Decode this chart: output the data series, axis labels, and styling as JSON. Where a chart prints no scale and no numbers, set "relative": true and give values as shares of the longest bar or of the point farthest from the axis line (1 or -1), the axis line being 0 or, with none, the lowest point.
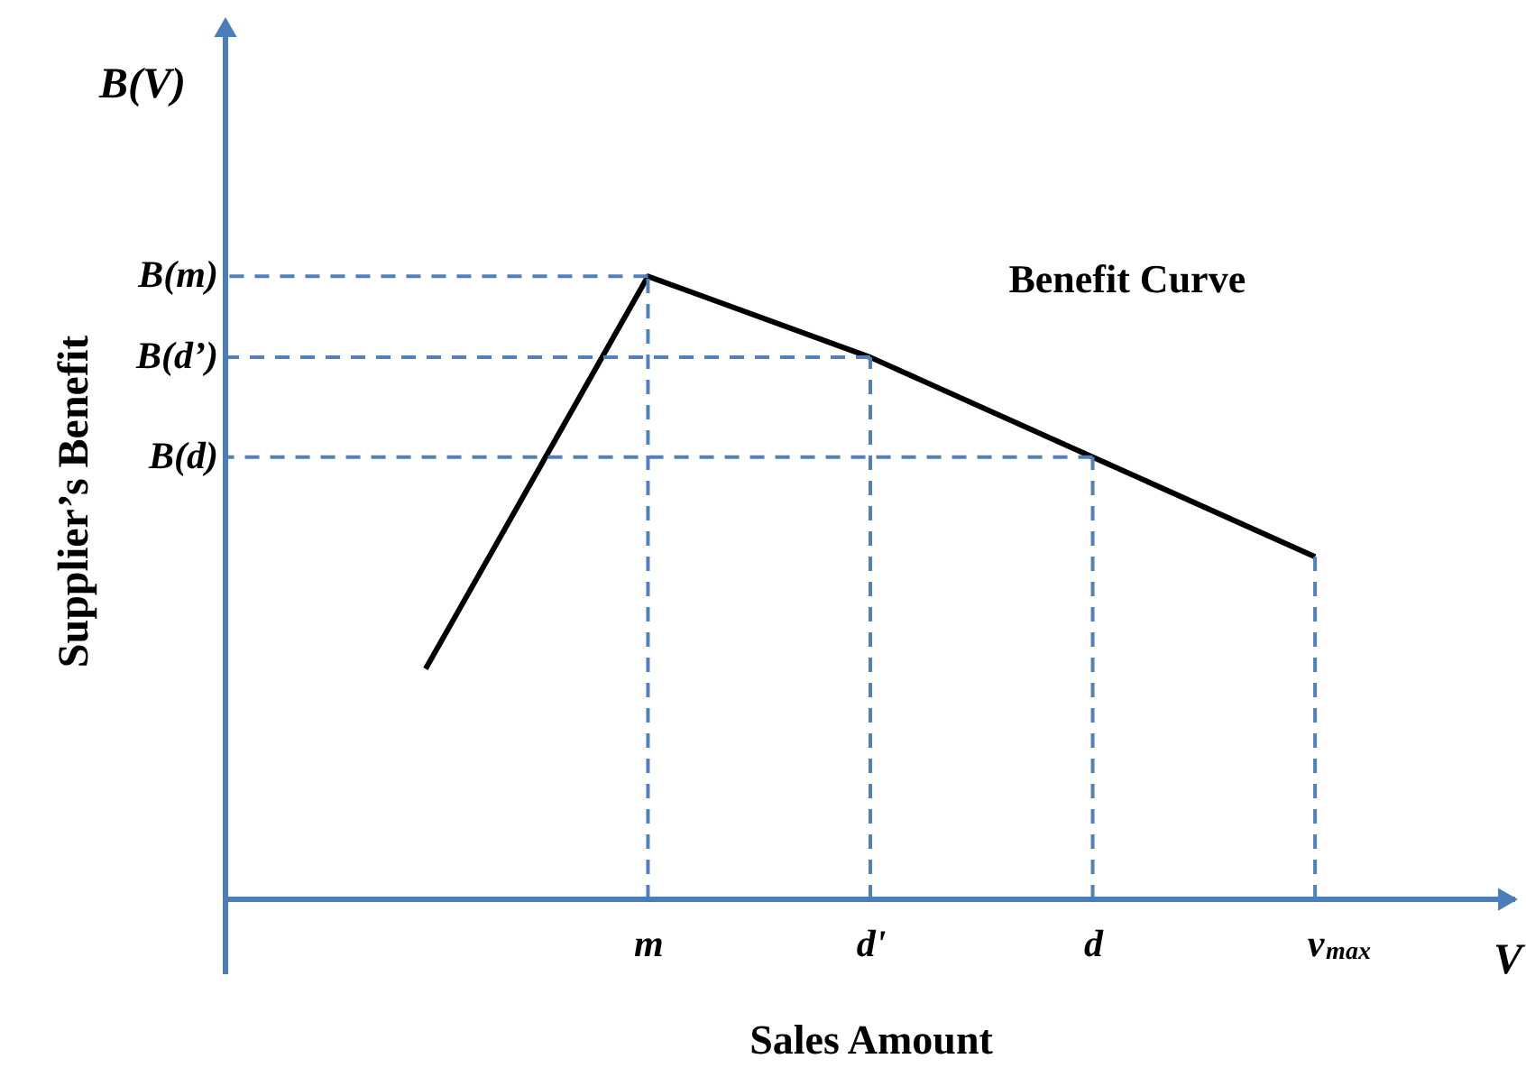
{
  "chart_data": {
    "type": "line",
    "relative": true,
    "xlabel": "Sales Amount",
    "ylabel": "Supplier’s Benefit",
    "annotations": [
      "B(V)",
      "V"
    ],
    "categories": [
      null,
      "m",
      "d'",
      "d",
      "v$_{max}$"
    ],
    "series": [
      {
        "name": "Benefit Curve",
        "color": "#000000",
        "values": [
          0.37,
          1,
          0.87,
          0.71,
          0.55
        ]
      }
    ],
    "ref_lines": [
      {
        "axis": "x",
        "value": "m",
        "color": "#4f81bd",
        "line_style": "dashed"
      },
      {
        "axis": "x",
        "value": "d'",
        "color": "#4f81bd",
        "line_style": "dashed"
      },
      {
        "axis": "x",
        "value": "d",
        "color": "#4f81bd",
        "line_style": "dashed"
      },
      {
        "axis": "x",
        "value": "v$_{max}$",
        "color": "#4f81bd",
        "line_style": "dashed"
      },
      {
        "axis": "y",
        "value": 1,
        "label": "B(m)",
        "color": "#4f81bd",
        "line_style": "dashed"
      },
      {
        "axis": "y",
        "value": 0.87,
        "label": "B(d’)",
        "color": "#4f81bd",
        "line_style": "dashed"
      },
      {
        "axis": "y",
        "value": 0.71,
        "label": "B(d)",
        "color": "#4f81bd",
        "line_style": "dashed"
      }
    ],
    "grid": false,
    "marker": "none",
    "line_style": "solid"
  }
}
